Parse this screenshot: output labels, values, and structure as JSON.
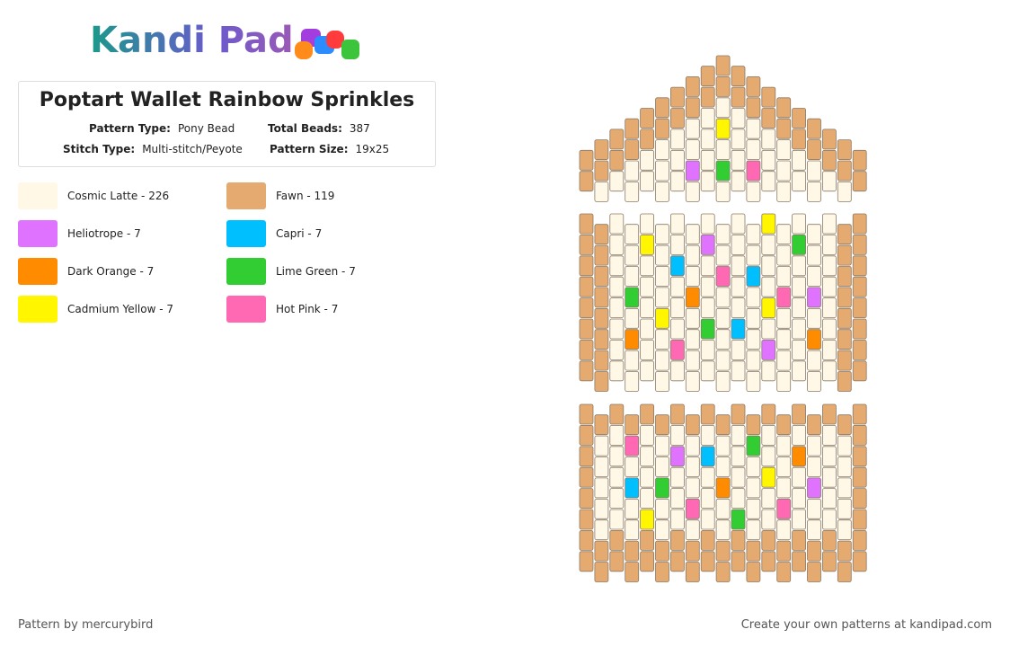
{
  "header": {
    "logo": "Kandi Pad",
    "title": "Poptart Wallet Rainbow Sprinkles"
  },
  "details": [
    {
      "label": "Pattern Type:",
      "value": "Pony Bead"
    },
    {
      "label": "Total Beads:",
      "value": 387
    },
    {
      "label": "Stitch Type:",
      "value": "Multi-stitch/Peyote"
    },
    {
      "label": "Pattern Size:",
      "value": "19x25"
    }
  ],
  "legend": [
    {
      "name": "Cosmic Latte - 226",
      "color": "#fff8e7"
    },
    {
      "name": "Fawn - 119",
      "color": "#e5aa70"
    },
    {
      "name": "Heliotrope - 7",
      "color": "#df73ff"
    },
    {
      "name": "Capri - 7",
      "color": "#00bfff"
    },
    {
      "name": "Dark Orange - 7",
      "color": "#ff8c00"
    },
    {
      "name": "Lime Green - 7",
      "color": "#32cd32"
    },
    {
      "name": "Cadmium Yellow - 7",
      "color": "#fff600"
    },
    {
      "name": "Hot Pink - 7",
      "color": "#ff69b4"
    }
  ],
  "footer": {
    "credit": "Pattern by mercurybird",
    "link": "Create your own patterns at kandipad.com"
  }
}
